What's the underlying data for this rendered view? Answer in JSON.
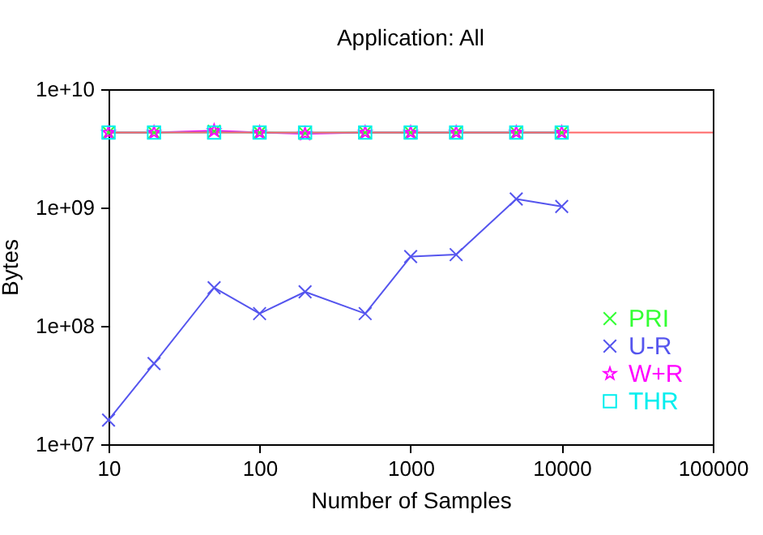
{
  "chart_data": {
    "type": "line",
    "title": "Application: All",
    "xlabel": "Number of Samples",
    "ylabel": "Bytes",
    "x": [
      10,
      20,
      50,
      100,
      200,
      500,
      1000,
      2000,
      5000,
      10000
    ],
    "series": [
      {
        "name": "PRI",
        "color": "#33ff33",
        "marker": "cross",
        "values": [
          4300000000.0,
          4300000000.0,
          4400000000.0,
          4300000000.0,
          4250000000.0,
          4300000000.0,
          4300000000.0,
          4300000000.0,
          4300000000.0,
          4300000000.0
        ]
      },
      {
        "name": "U-R",
        "color": "#5555ee",
        "marker": "cross",
        "values": [
          16000000.0,
          48000000.0,
          210000000.0,
          127000000.0,
          194000000.0,
          127000000.0,
          385000000.0,
          400000000.0,
          1180000000.0,
          1020000000.0
        ]
      },
      {
        "name": "W+R",
        "color": "#ff00ff",
        "marker": "star",
        "values": [
          4300000000.0,
          4300000000.0,
          4450000000.0,
          4300000000.0,
          4200000000.0,
          4300000000.0,
          4300000000.0,
          4300000000.0,
          4300000000.0,
          4300000000.0
        ]
      },
      {
        "name": "THR",
        "color": "#00eeee",
        "marker": "square",
        "values": [
          4300000000.0,
          4300000000.0,
          4300000000.0,
          4300000000.0,
          4300000000.0,
          4300000000.0,
          4300000000.0,
          4300000000.0,
          4300000000.0,
          4300000000.0
        ]
      }
    ],
    "ref_lines": [
      {
        "axis": "y",
        "value": 4300000000.0,
        "color": "#ff6666"
      }
    ],
    "log": "xy",
    "xlim": [
      10,
      100000
    ],
    "xticks": [
      10,
      100,
      1000,
      10000,
      100000
    ],
    "ylim": [
      10000000.0,
      10000000000.0
    ],
    "yticks": [
      {
        "value": 10000000.0,
        "label": "1e+07"
      },
      {
        "value": 100000000.0,
        "label": "1e+08"
      },
      {
        "value": 1000000000.0,
        "label": "1e+09"
      },
      {
        "value": 10000000000.0,
        "label": "1e+10"
      }
    ],
    "grid": false,
    "legend": "bottom right"
  }
}
